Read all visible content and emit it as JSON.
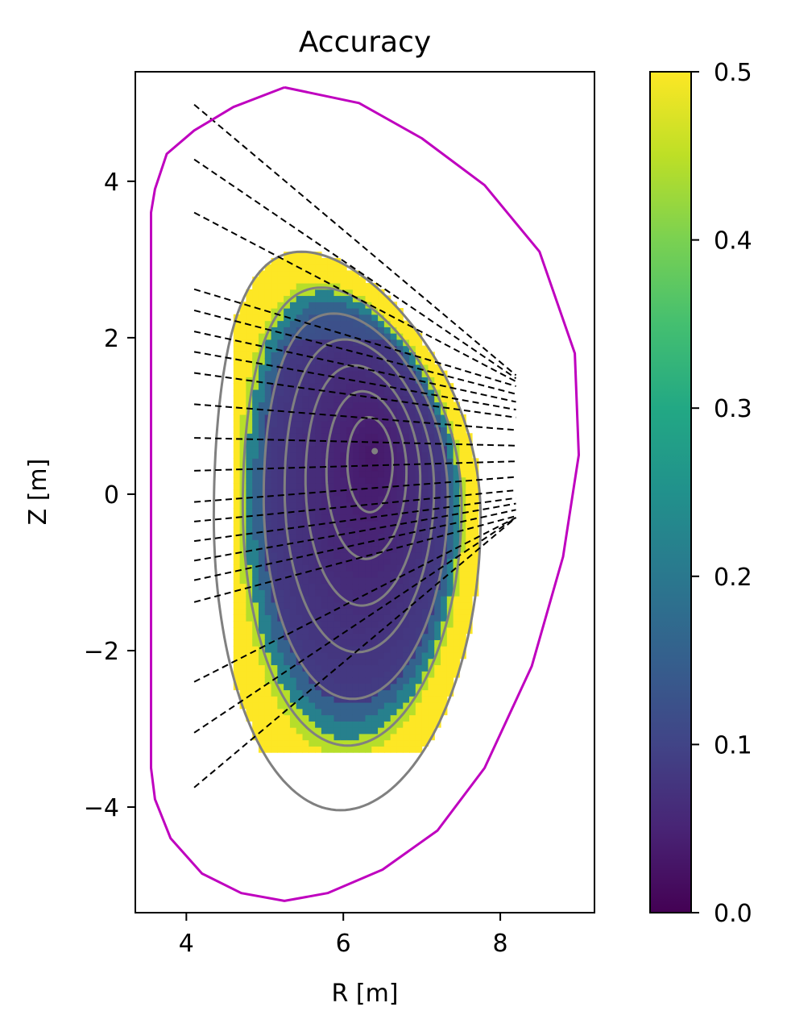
{
  "chart_data": {
    "type": "heatmap",
    "title": "Accuracy",
    "xlabel": "R [m]",
    "ylabel": "Z [m]",
    "xlim": [
      3.35,
      9.2
    ],
    "ylim": [
      -5.35,
      5.4
    ],
    "x_ticks": [
      4,
      6,
      8
    ],
    "y_ticks": [
      -4,
      -2,
      0,
      2,
      4
    ],
    "x_tick_labels": [
      "4",
      "6",
      "8"
    ],
    "y_tick_labels": [
      "−4",
      "−2",
      "0",
      "2",
      "4"
    ],
    "colorbar": {
      "colormap": "viridis",
      "min": 0.0,
      "max": 0.5,
      "ticks": [
        0.0,
        0.1,
        0.2,
        0.3,
        0.4,
        0.5
      ],
      "tick_labels": [
        "0.0",
        "0.1",
        "0.2",
        "0.3",
        "0.4",
        "0.5"
      ]
    },
    "heatmap": {
      "region": "inside outermost flux surface",
      "magnetic_axis": [
        6.4,
        0.55
      ],
      "edge_value": 0.5,
      "core_value": 0.03,
      "grid_step": 0.08
    },
    "vessel_boundary": {
      "color": "#bf00bf",
      "points": [
        [
          5.25,
          5.2
        ],
        [
          4.6,
          4.95
        ],
        [
          4.1,
          4.65
        ],
        [
          3.75,
          4.35
        ],
        [
          3.6,
          3.9
        ],
        [
          3.55,
          3.6
        ],
        [
          3.55,
          0
        ],
        [
          3.55,
          -3.5
        ],
        [
          3.6,
          -3.9
        ],
        [
          3.8,
          -4.4
        ],
        [
          4.2,
          -4.85
        ],
        [
          4.7,
          -5.1
        ],
        [
          5.25,
          -5.2
        ],
        [
          5.8,
          -5.1
        ],
        [
          6.5,
          -4.8
        ],
        [
          7.2,
          -4.3
        ],
        [
          7.8,
          -3.5
        ],
        [
          8.4,
          -2.2
        ],
        [
          8.8,
          -0.8
        ],
        [
          9.0,
          0.5
        ],
        [
          8.95,
          1.8
        ],
        [
          8.5,
          3.1
        ],
        [
          7.8,
          3.95
        ],
        [
          7.0,
          4.55
        ],
        [
          6.2,
          5.0
        ],
        [
          5.25,
          5.2
        ]
      ]
    },
    "flux_surfaces": {
      "color": "#808080",
      "axis_point": [
        6.4,
        0.55
      ],
      "rho": [
        1.0,
        0.82,
        0.69,
        0.56,
        0.43,
        0.3,
        0.17
      ]
    },
    "sight_lines": {
      "color": "#000000",
      "style": "dashed",
      "lines": [
        [
          [
            4.1,
            4.98
          ],
          [
            8.2,
            1.52
          ]
        ],
        [
          [
            4.1,
            4.28
          ],
          [
            8.2,
            1.48
          ]
        ],
        [
          [
            4.1,
            3.6
          ],
          [
            8.2,
            1.44
          ]
        ],
        [
          [
            4.1,
            2.62
          ],
          [
            8.2,
            1.38
          ]
        ],
        [
          [
            4.1,
            2.35
          ],
          [
            8.2,
            1.28
          ]
        ],
        [
          [
            4.1,
            2.08
          ],
          [
            8.2,
            1.18
          ]
        ],
        [
          [
            4.1,
            1.82
          ],
          [
            8.2,
            1.08
          ]
        ],
        [
          [
            4.1,
            1.55
          ],
          [
            8.2,
            0.98
          ]
        ],
        [
          [
            4.1,
            1.15
          ],
          [
            8.2,
            0.82
          ]
        ],
        [
          [
            4.1,
            0.72
          ],
          [
            8.2,
            0.62
          ]
        ],
        [
          [
            4.1,
            0.3
          ],
          [
            8.2,
            0.42
          ]
        ],
        [
          [
            4.1,
            -0.1
          ],
          [
            8.2,
            0.22
          ]
        ],
        [
          [
            4.1,
            -0.35
          ],
          [
            8.2,
            0.05
          ]
        ],
        [
          [
            4.1,
            -0.6
          ],
          [
            8.2,
            -0.05
          ]
        ],
        [
          [
            4.1,
            -0.85
          ],
          [
            8.2,
            -0.12
          ]
        ],
        [
          [
            4.1,
            -1.1
          ],
          [
            8.2,
            -0.2
          ]
        ],
        [
          [
            4.1,
            -1.38
          ],
          [
            8.2,
            -0.28
          ]
        ],
        [
          [
            4.1,
            -2.4
          ],
          [
            8.2,
            -0.3
          ]
        ],
        [
          [
            4.1,
            -3.05
          ],
          [
            8.2,
            -0.3
          ]
        ],
        [
          [
            4.1,
            -3.75
          ],
          [
            8.2,
            -0.3
          ]
        ]
      ]
    }
  }
}
